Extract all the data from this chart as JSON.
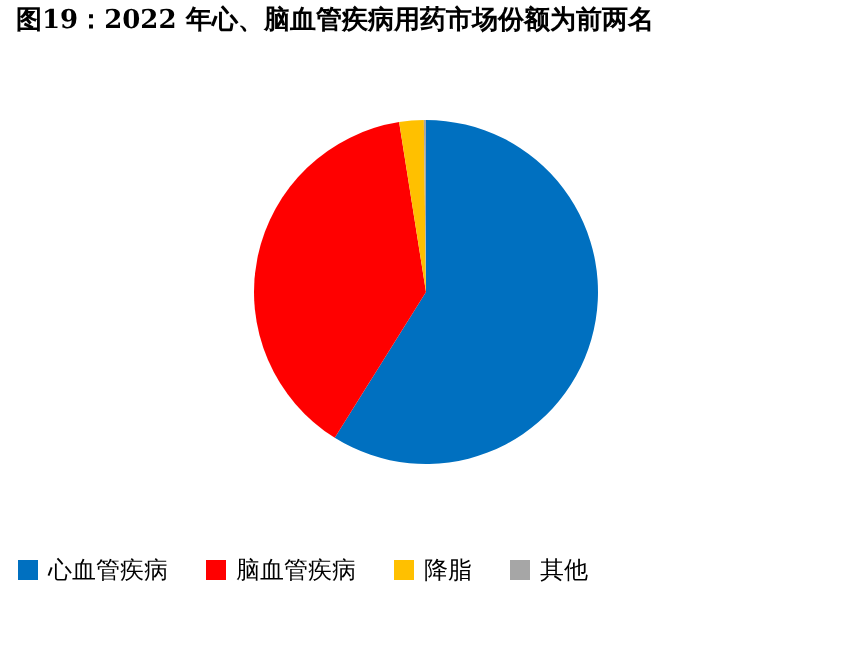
{
  "chart_data": {
    "type": "pie",
    "title": "图19：2022 年心、脑血管疾病用药市场份额为前两名",
    "categories": [
      "心血管疾病",
      "脑血管疾病",
      "降脂",
      "其他"
    ],
    "values": [
      58.9,
      38.6,
      2.3,
      0.2
    ],
    "colors": [
      "#0070c0",
      "#ff0000",
      "#ffc000",
      "#a6a6a6"
    ],
    "legend": "bottom"
  }
}
